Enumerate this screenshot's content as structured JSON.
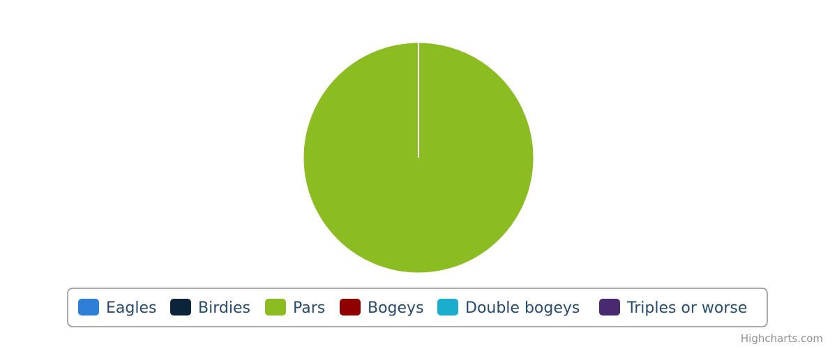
{
  "chart_data": {
    "type": "pie",
    "title": "",
    "categories": [
      "Eagles",
      "Birdies",
      "Pars",
      "Bogeys",
      "Double bogeys",
      "Triples or worse"
    ],
    "values": [
      0,
      0,
      100,
      0,
      0,
      0
    ],
    "colors": [
      "#2f7ed8",
      "#0d233a",
      "#8bbc21",
      "#910000",
      "#1aadce",
      "#492970"
    ],
    "legend_position": "bottom-center"
  },
  "credits": "Highcharts.com"
}
